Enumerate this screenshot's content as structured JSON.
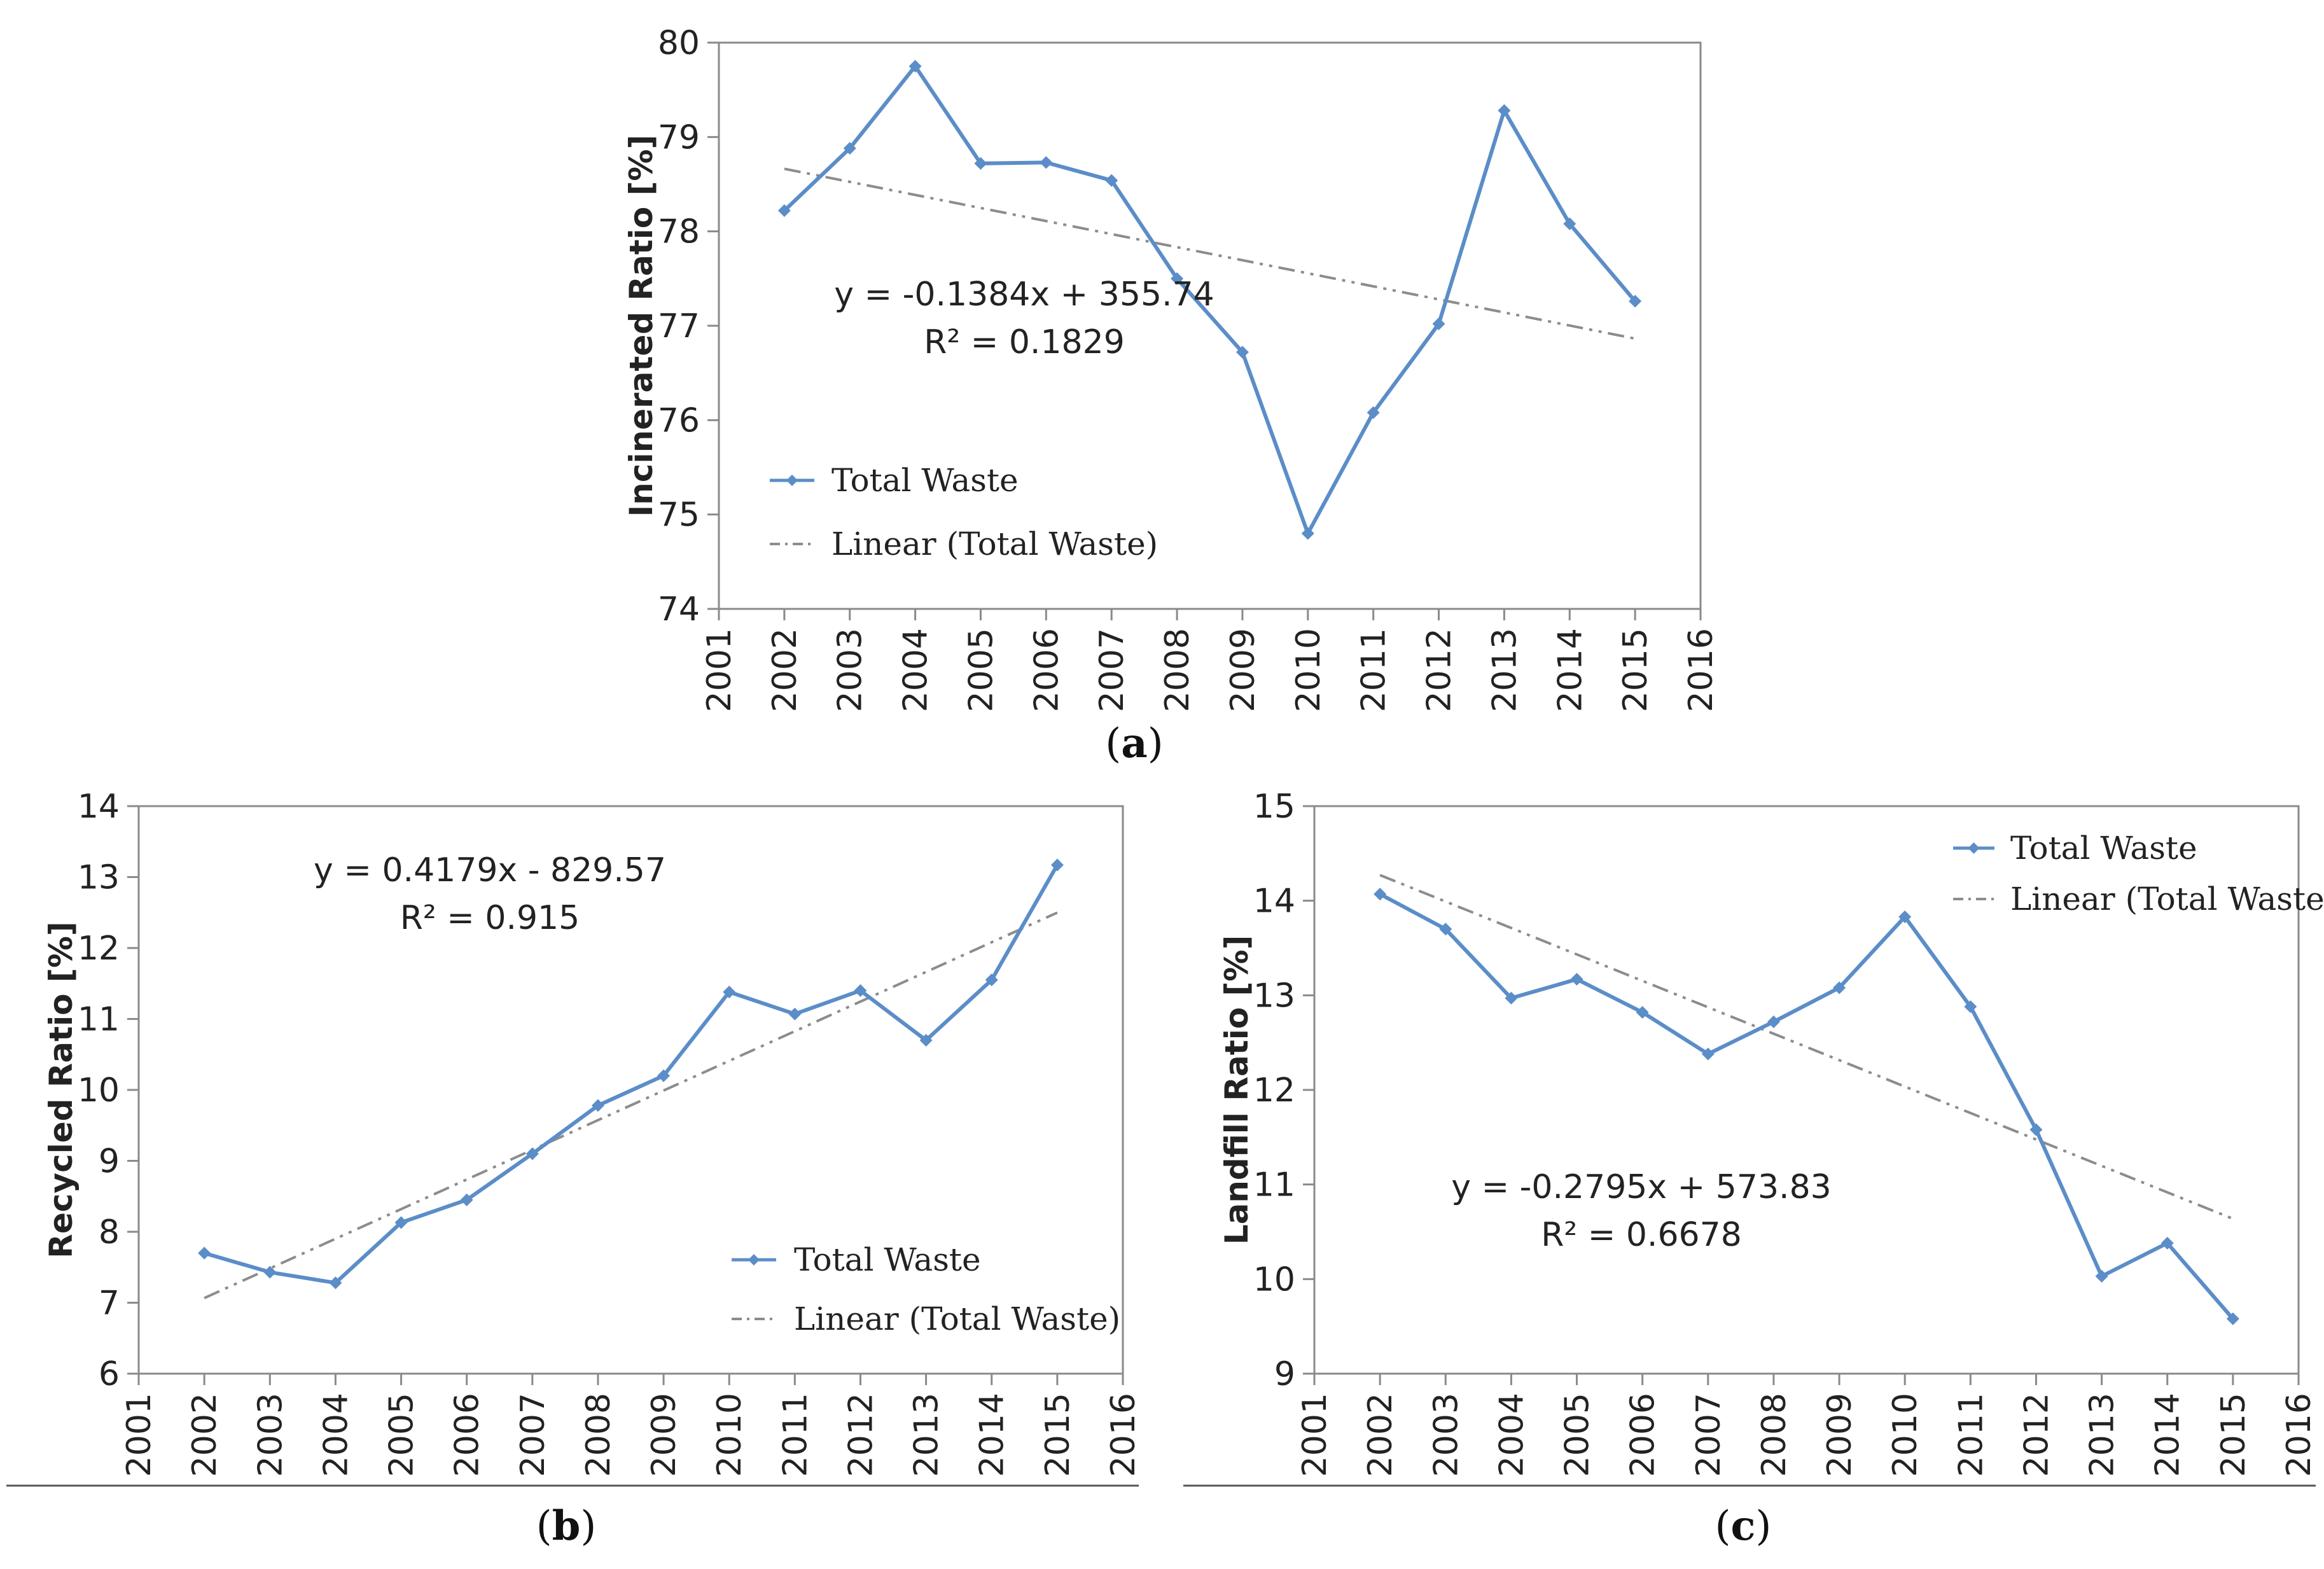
{
  "colors": {
    "series": "#5B8DC8",
    "trend": "#8C8C8C",
    "axis": "#8A8A8A",
    "text": "#222222"
  },
  "chart_data": [
    {
      "id": "a",
      "type": "line",
      "caption_label": "a",
      "ylabel": "Incinerated Ratio [%]",
      "ylim": [
        74,
        80
      ],
      "yticks": [
        74,
        75,
        76,
        77,
        78,
        79,
        80
      ],
      "xlim": [
        2001,
        2016
      ],
      "xticks": [
        "2001",
        "2002",
        "2003",
        "2004",
        "2005",
        "2006",
        "2007",
        "2008",
        "2009",
        "2010",
        "2011",
        "2012",
        "2013",
        "2014",
        "2015",
        "2016"
      ],
      "series": [
        {
          "name": "Total Waste",
          "x": [
            2002,
            2003,
            2004,
            2005,
            2006,
            2007,
            2008,
            2009,
            2010,
            2011,
            2012,
            2013,
            2014,
            2015
          ],
          "values": [
            78.22,
            78.88,
            79.75,
            78.72,
            78.73,
            78.54,
            77.5,
            76.72,
            74.8,
            76.08,
            77.02,
            79.28,
            78.08,
            77.26
          ]
        }
      ],
      "trend": {
        "name": "Linear (Total Waste)",
        "slope": -0.1384,
        "intercept": 355.74
      },
      "equation": "y = -0.1384x + 355.74",
      "r2": "R² = 0.1829"
    },
    {
      "id": "b",
      "type": "line",
      "caption_label": "b",
      "ylabel": "Recycled Ratio [%]",
      "ylim": [
        6,
        14
      ],
      "yticks": [
        6,
        7,
        8,
        9,
        10,
        11,
        12,
        13,
        14
      ],
      "xlim": [
        2001,
        2016
      ],
      "xticks": [
        "2001",
        "2002",
        "2003",
        "2004",
        "2005",
        "2006",
        "2007",
        "2008",
        "2009",
        "2010",
        "2011",
        "2012",
        "2013",
        "2014",
        "2015",
        "2016"
      ],
      "series": [
        {
          "name": "Total Waste",
          "x": [
            2002,
            2003,
            2004,
            2005,
            2006,
            2007,
            2008,
            2009,
            2010,
            2011,
            2012,
            2013,
            2014,
            2015
          ],
          "values": [
            7.7,
            7.43,
            7.28,
            8.13,
            8.45,
            9.1,
            9.78,
            10.2,
            11.38,
            11.07,
            11.4,
            10.7,
            11.55,
            13.17
          ]
        }
      ],
      "trend": {
        "name": "Linear (Total Waste)",
        "slope": 0.4179,
        "intercept": -829.57
      },
      "equation": "y = 0.4179x - 829.57",
      "r2": "R² = 0.915"
    },
    {
      "id": "c",
      "type": "line",
      "caption_label": "c",
      "ylabel": "Landfill Ratio [%]",
      "ylim": [
        9,
        15
      ],
      "yticks": [
        9,
        10,
        11,
        12,
        13,
        14,
        15
      ],
      "xlim": [
        2001,
        2016
      ],
      "xticks": [
        "2001",
        "2002",
        "2003",
        "2004",
        "2005",
        "2006",
        "2007",
        "2008",
        "2009",
        "2010",
        "2011",
        "2012",
        "2013",
        "2014",
        "2015",
        "2016"
      ],
      "series": [
        {
          "name": "Total Waste",
          "x": [
            2002,
            2003,
            2004,
            2005,
            2006,
            2007,
            2008,
            2009,
            2010,
            2011,
            2012,
            2013,
            2014,
            2015
          ],
          "values": [
            14.07,
            13.7,
            12.97,
            13.17,
            12.82,
            12.38,
            12.72,
            13.08,
            13.83,
            12.88,
            11.58,
            10.03,
            10.38,
            9.58
          ]
        }
      ],
      "trend": {
        "name": "Linear (Total Waste)",
        "slope": -0.2795,
        "intercept": 573.83
      },
      "equation": "y = -0.2795x + 573.83",
      "r2": "R² = 0.6678"
    }
  ]
}
